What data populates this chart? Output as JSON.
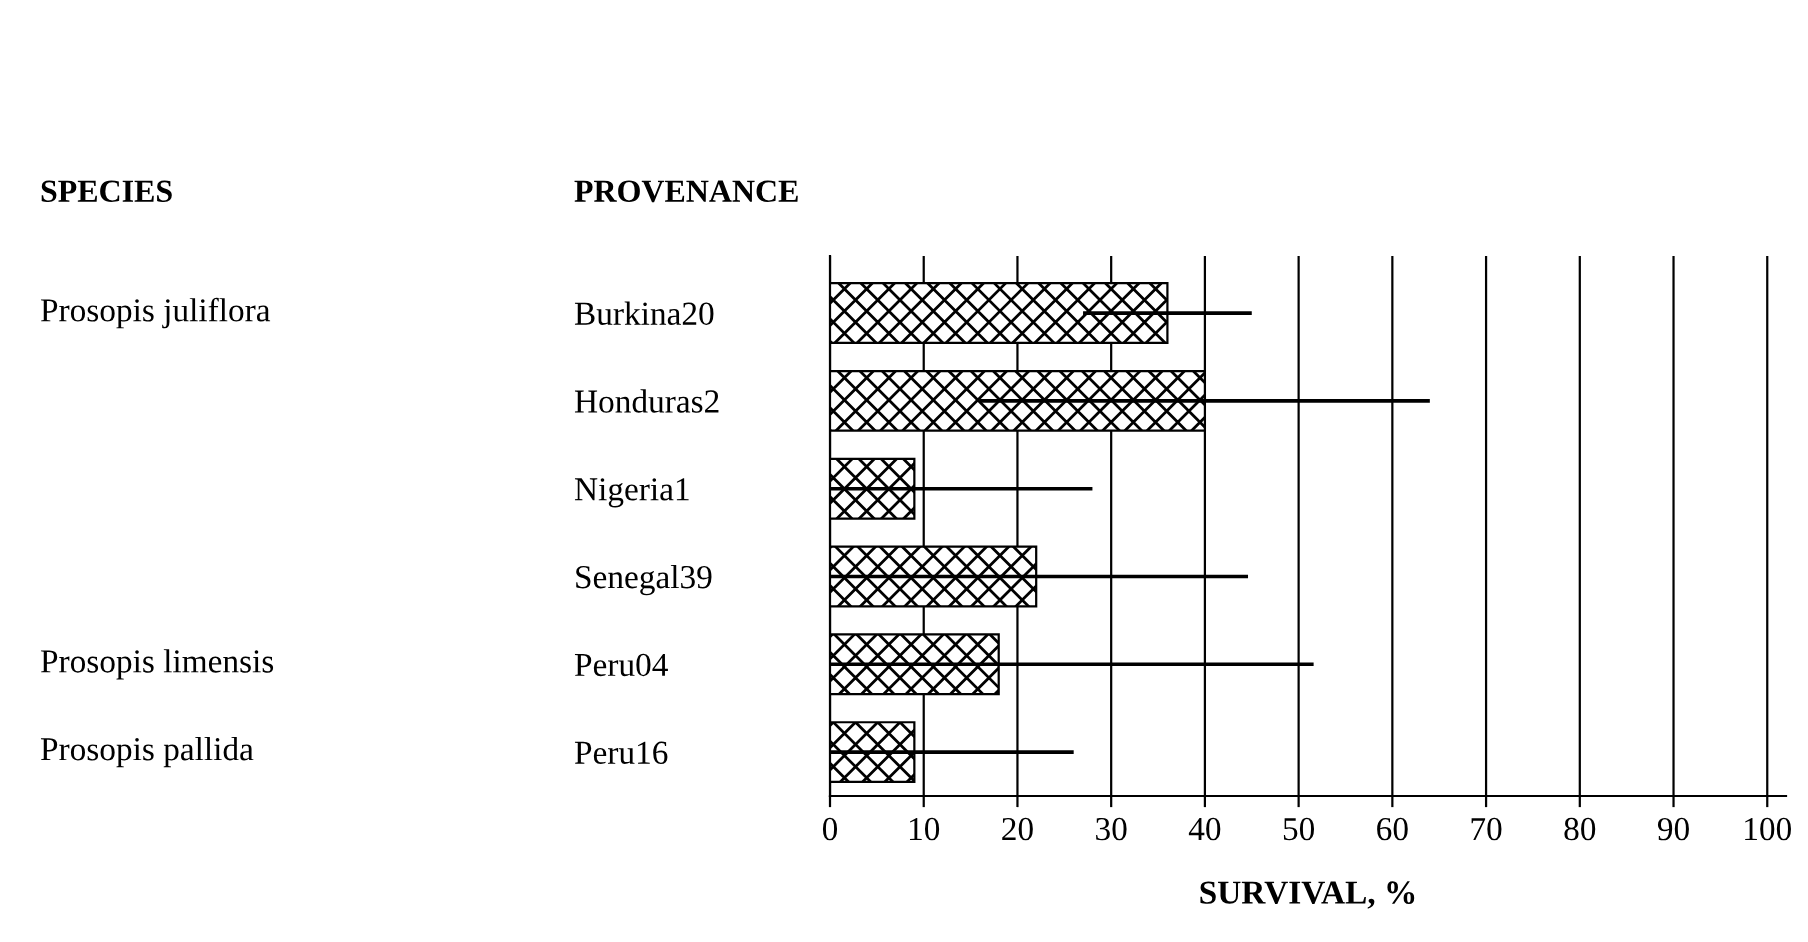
{
  "chart_data": {
    "type": "bar",
    "orientation": "horizontal",
    "xlabel": "SURVIVAL, %",
    "ylabel": "PROVENANCE",
    "categories": [
      "Burkina20",
      "Honduras2",
      "Nigeria1",
      "Senegal39",
      "Peru04",
      "Peru16"
    ],
    "values": [
      36,
      40,
      9,
      22,
      18,
      9
    ],
    "errors": [
      [
        27,
        45
      ],
      [
        16,
        64
      ],
      [
        0,
        28
      ],
      [
        0,
        44.6
      ],
      [
        0,
        51.6
      ],
      [
        0,
        26
      ]
    ],
    "color": "#000000",
    "xlim": [
      0,
      102
    ],
    "xticks": [
      0,
      10,
      20,
      30,
      40,
      50,
      60,
      70,
      80,
      90,
      100
    ],
    "grid": "x",
    "annotations": [
      "SPECIES",
      "Prosopis juliflora",
      "Prosopis limensis",
      "Prosopis pallida"
    ]
  }
}
